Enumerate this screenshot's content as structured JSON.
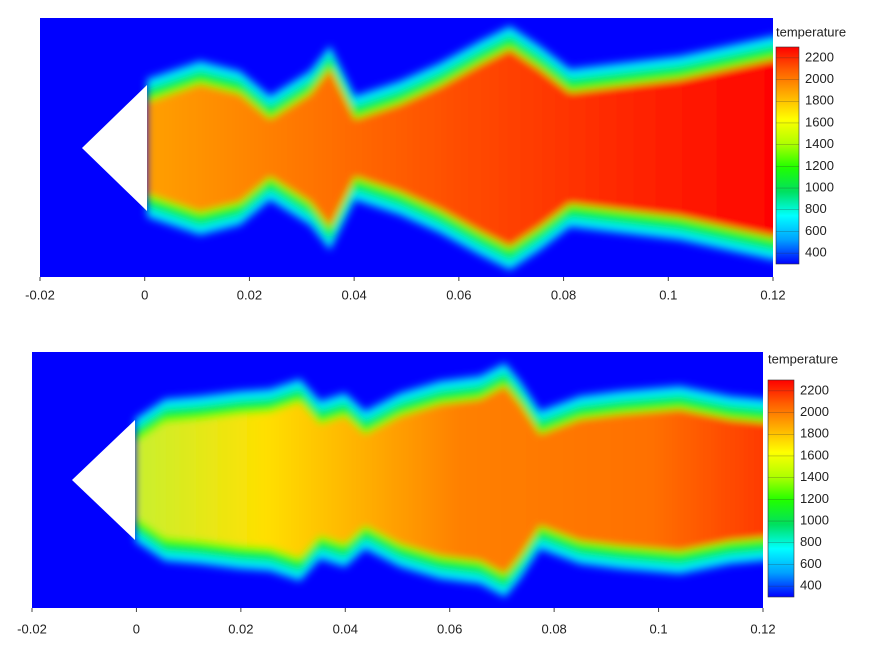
{
  "chart_data": [
    {
      "type": "contour",
      "colorbar_title": "temperature",
      "xlim": [
        -0.02,
        0.12
      ],
      "xticks": [
        -0.02,
        0,
        0.02,
        0.04,
        0.06,
        0.08,
        0.1,
        0.12
      ],
      "clim": [
        300,
        2300
      ],
      "cticks": [
        400,
        600,
        800,
        1000,
        1200,
        1400,
        1600,
        1800,
        2000,
        2200
      ],
      "colorscale": [
        "#0000ff",
        "#00a0ff",
        "#00ffff",
        "#00e060",
        "#20ff00",
        "#b0ff00",
        "#ffff00",
        "#ffb000",
        "#ff6000",
        "#ff0000"
      ]
    },
    {
      "type": "contour",
      "colorbar_title": "temperature",
      "xlim": [
        -0.02,
        0.12
      ],
      "xticks": [
        -0.02,
        0,
        0.02,
        0.04,
        0.06,
        0.08,
        0.1,
        0.12
      ],
      "clim": [
        300,
        2300
      ],
      "cticks": [
        400,
        600,
        800,
        1000,
        1200,
        1400,
        1600,
        1800,
        2000,
        2200
      ],
      "colorscale": [
        "#0000ff",
        "#00a0ff",
        "#00ffff",
        "#00e060",
        "#20ff00",
        "#b0ff00",
        "#ffff00",
        "#ffb000",
        "#ff6000",
        "#ff0000"
      ]
    }
  ]
}
